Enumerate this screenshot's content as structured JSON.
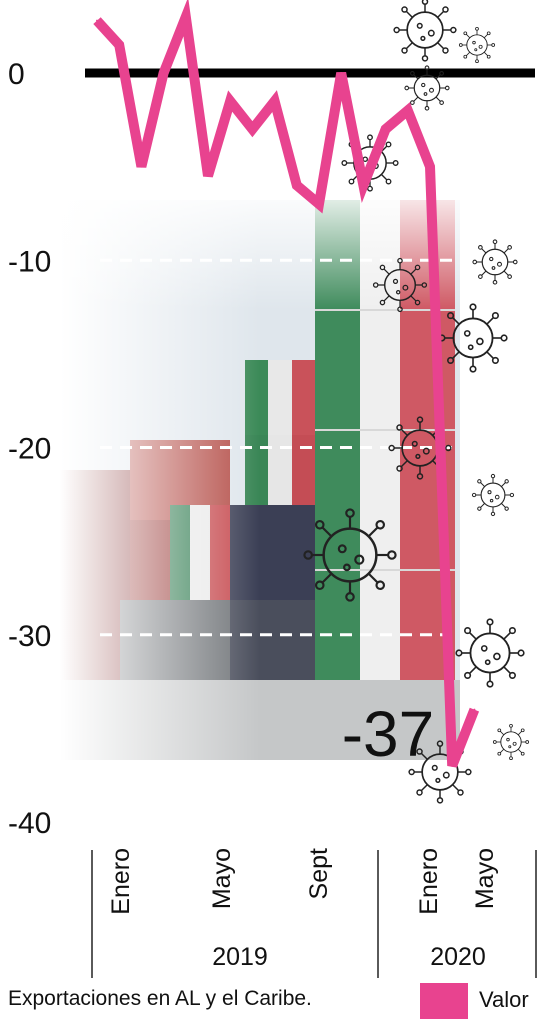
{
  "chart_data": {
    "type": "line",
    "title": "",
    "xlabel": "",
    "ylabel": "",
    "ylim": [
      -40,
      0
    ],
    "yticks": [
      0,
      -10,
      -20,
      -30,
      -40
    ],
    "grid": true,
    "legend_placement": "bottom-right",
    "x": [
      "2019-01",
      "2019-02",
      "2019-03",
      "2019-04",
      "2019-05",
      "2019-06",
      "2019-07",
      "2019-08",
      "2019-09",
      "2019-10",
      "2019-11",
      "2019-12",
      "2020-01",
      "2020-02",
      "2020-03",
      "2020-04",
      "2020-05",
      "2020-06"
    ],
    "series": [
      {
        "name": "Valor",
        "color": "#e8438f",
        "values": [
          2.8,
          1.5,
          -5,
          0,
          3,
          -5.5,
          -1.5,
          -3,
          -1.5,
          -6,
          -7,
          0,
          -6,
          -3,
          -2,
          -5,
          -37,
          -34
        ]
      }
    ],
    "month_labels": [
      {
        "label": "Enero",
        "x_index": 0
      },
      {
        "label": "Mayo",
        "x_index": 4
      },
      {
        "label": "Sept",
        "x_index": 8
      },
      {
        "label": "Enero",
        "x_index": 12
      },
      {
        "label": "Mayo",
        "x_index": 16
      }
    ],
    "year_groups": [
      {
        "label": "2019",
        "from_index": 0,
        "to_index": 11
      },
      {
        "label": "2020",
        "from_index": 12,
        "to_index": 17
      }
    ],
    "annotations": [
      {
        "text": "-37",
        "x_index": 16
      }
    ]
  },
  "caption": "Exportaciones en AL y el Caribe.",
  "legend": {
    "label": "Valor"
  },
  "colors": {
    "line": "#e8438f",
    "zero_line": "#000000",
    "grid": "#ffffff"
  },
  "decorations": {
    "background_photo": "shipping-containers",
    "icons": "virus-icon"
  }
}
